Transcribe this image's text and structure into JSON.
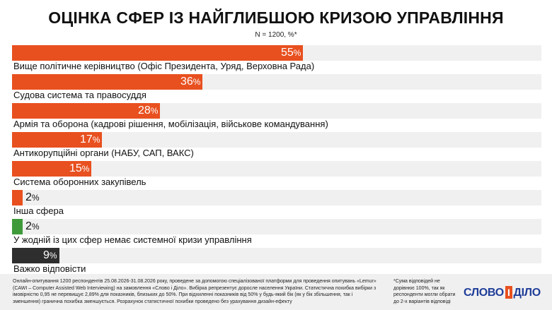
{
  "title": "ОЦІНКА СФЕР ІЗ НАЙГЛИБШОЮ КРИЗОЮ УПРАВЛІННЯ",
  "subtitle": "N = 1200, %*",
  "colors": {
    "orange": "#e8501f",
    "green": "#3f9b3a",
    "dark": "#2e2e2e",
    "track": "#f0f0f0"
  },
  "chart_data": {
    "type": "bar",
    "orientation": "horizontal",
    "title": "ОЦІНКА СФЕР ІЗ НАЙГЛИБШОЮ КРИЗОЮ УПРАВЛІННЯ",
    "xlim": [
      0,
      100
    ],
    "unit": "%",
    "categories": [
      "Вище політичне керівництво (Офіс Президента, Уряд, Верховна Рада)",
      "Судова система та правосуддя",
      "Армія та оборона (кадрові рішення, мобілізація, військове командування)",
      "Антикорупційні органи (НАБУ, САП, ВАКС)",
      "Система оборонних закупівель",
      "Інша сфера",
      "У жодній із цих сфер немає системної кризи управління",
      "Важко відповісти"
    ],
    "values": [
      55,
      36,
      28,
      17,
      15,
      2,
      2,
      9
    ],
    "bar_colors": [
      "#e8501f",
      "#e8501f",
      "#e8501f",
      "#e8501f",
      "#e8501f",
      "#e8501f",
      "#3f9b3a",
      "#2e2e2e"
    ]
  },
  "footer": {
    "note": "Онлайн-опитування 1200 респондентів 25.08.2026-31.08.2026 року, проведене за допомогою спеціалізованої платформи для проведення опитувань «Lemur» (CAWI – Computer Assisted Web Interviewing) на замовлення «Слово і Діло». Вибірка репрезентує доросле населення України. Статистична похибка вибірки з імовірністю 0,95 не перевищує 2,89% для показників, близьких до 50%. При відхиленні показників від 50% у будь-який бік (як у бік збільшення, так і зменшення) гранична похибка зменшується. Розрахунок статистичної похибки проведено без урахування дизайн-ефекту",
    "side_note": "*Сума відповідей не дорівнює 100%, так як респонденти могли обрати до 2-х варіантів відповіді"
  },
  "logo": {
    "word1": "СЛОВО",
    "word2": "І",
    "word3": "ДІЛО"
  }
}
